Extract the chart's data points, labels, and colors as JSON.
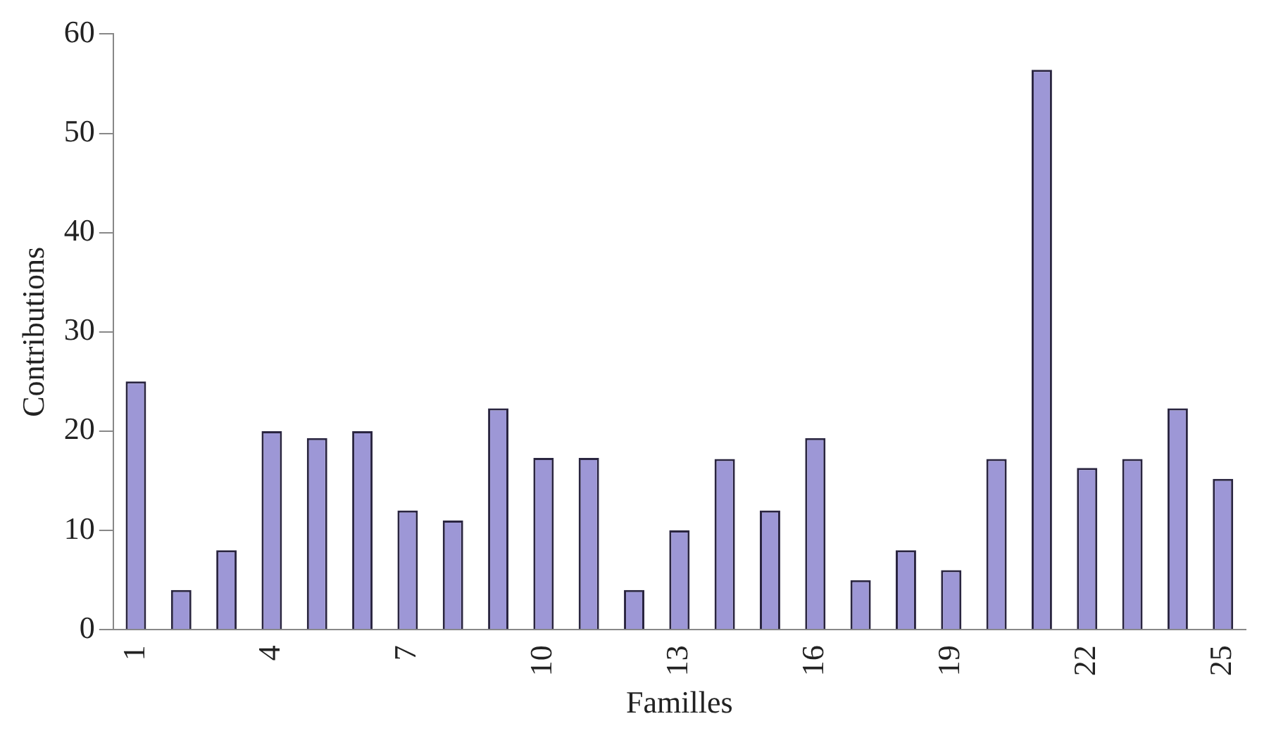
{
  "chart_data": {
    "type": "bar",
    "xlabel": "Familles",
    "ylabel": "Contributions",
    "categories": [
      "1",
      null,
      null,
      "4",
      null,
      null,
      "7",
      null,
      null,
      "10",
      null,
      null,
      "13",
      null,
      null,
      "16",
      null,
      null,
      "19",
      null,
      null,
      "22",
      null,
      null,
      "25"
    ],
    "values": [
      25,
      4,
      8,
      20,
      19.3,
      20,
      12,
      11,
      22.3,
      17.3,
      17.3,
      4,
      10,
      17.2,
      12,
      19.3,
      5,
      8,
      6,
      17.2,
      56.4,
      16.3,
      17.2,
      22.3,
      15.2
    ],
    "color": "#9d97d6",
    "ylim": [
      0,
      60
    ],
    "yticks": [
      0,
      10,
      20,
      30,
      40,
      50,
      60
    ],
    "grid": false,
    "legend": false
  }
}
